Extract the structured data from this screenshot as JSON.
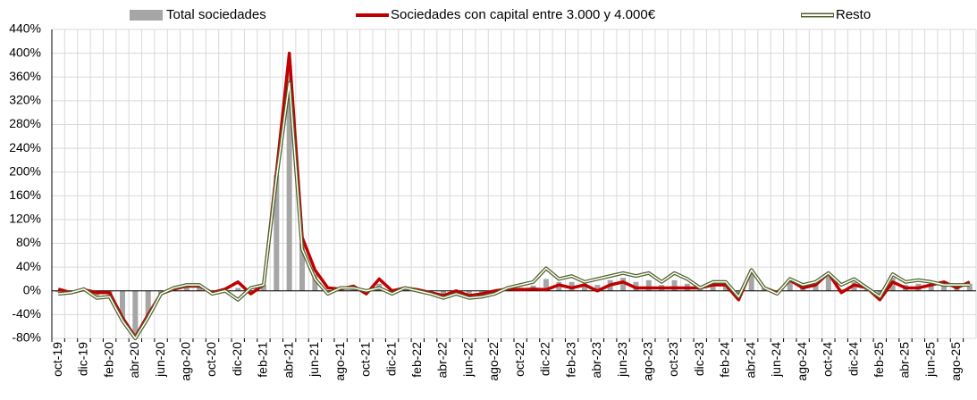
{
  "chart_data": {
    "type": "bar",
    "categories": [
      "oct-19",
      null,
      "dic-19",
      null,
      "feb-20",
      null,
      "abr-20",
      null,
      "jun-20",
      null,
      "ago-20",
      null,
      "oct-20",
      null,
      "dic-20",
      null,
      "feb-21",
      null,
      "abr-21",
      null,
      "jun-21",
      null,
      "ago-21",
      null,
      "oct-21",
      null,
      "dic-21",
      null,
      "feb-22",
      null,
      "abr-22",
      null,
      "jun-22",
      null,
      "ago-22",
      null,
      "oct-22",
      null,
      "dic-22",
      null,
      "feb-23",
      null,
      "abr-23",
      null,
      "jun-23",
      null,
      "ago-23",
      null,
      "oct-23",
      null,
      "dic-23",
      null,
      "feb-24",
      null,
      "abr-24",
      null,
      "jun-24",
      null,
      "ago-24",
      null,
      "oct-24",
      null,
      "dic-24",
      null,
      "feb-25",
      null,
      "abr-25",
      null,
      "jun-25",
      null,
      "ago-25",
      null
    ],
    "series": [
      {
        "name": "Total sociedades",
        "type": "bar",
        "color": "#a6a6a6",
        "values": [
          -2,
          -3,
          2,
          -8,
          -7,
          -48,
          -80,
          -42,
          -5,
          4,
          9,
          9,
          -4,
          2,
          5,
          0,
          10,
          195,
          380,
          80,
          28,
          0,
          4,
          6,
          -3,
          12,
          -3,
          5,
          1,
          -4,
          -10,
          -3,
          -10,
          -8,
          -3,
          4,
          6,
          9,
          20,
          15,
          15,
          12,
          10,
          18,
          22,
          15,
          18,
          10,
          18,
          12,
          5,
          12,
          12,
          -12,
          35,
          5,
          -4,
          19,
          8,
          12,
          30,
          3,
          15,
          5,
          -12,
          22,
          10,
          12,
          12,
          12,
          8,
          12
        ]
      },
      {
        "name": "Sociedades con capital entre 3.000 y 4.000€",
        "type": "line",
        "color": "#c00000",
        "values": [
          3,
          -3,
          2,
          -3,
          -3,
          -45,
          -78,
          -40,
          -5,
          3,
          8,
          8,
          -3,
          3,
          15,
          -5,
          10,
          200,
          400,
          90,
          35,
          5,
          3,
          8,
          -5,
          20,
          0,
          5,
          2,
          -3,
          -8,
          0,
          -8,
          -5,
          0,
          3,
          2,
          3,
          2,
          10,
          5,
          10,
          0,
          10,
          15,
          5,
          5,
          5,
          5,
          5,
          5,
          10,
          10,
          -15,
          35,
          5,
          -3,
          18,
          5,
          10,
          30,
          -3,
          10,
          5,
          -15,
          15,
          5,
          5,
          10,
          15,
          5,
          15
        ]
      },
      {
        "name": "Resto",
        "type": "line",
        "color": "#4f6228",
        "values": [
          -5,
          -3,
          3,
          -12,
          -10,
          -50,
          -80,
          -45,
          -5,
          5,
          10,
          10,
          -5,
          0,
          -15,
          5,
          10,
          190,
          350,
          70,
          20,
          -5,
          5,
          5,
          0,
          5,
          -5,
          5,
          0,
          -5,
          -12,
          -5,
          -12,
          -10,
          -5,
          5,
          10,
          15,
          38,
          20,
          25,
          15,
          20,
          25,
          30,
          25,
          30,
          15,
          30,
          20,
          5,
          15,
          15,
          -10,
          35,
          5,
          -5,
          20,
          10,
          15,
          30,
          10,
          20,
          5,
          -10,
          28,
          15,
          18,
          15,
          10,
          10,
          10
        ]
      }
    ],
    "ylim": [
      -80,
      440
    ],
    "yticks": [
      {
        "value": -80,
        "label": "-80%"
      },
      {
        "value": -40,
        "label": "-40%"
      },
      {
        "value": 0,
        "label": "0%"
      },
      {
        "value": 40,
        "label": "40%"
      },
      {
        "value": 80,
        "label": "80%"
      },
      {
        "value": 120,
        "label": "120%"
      },
      {
        "value": 160,
        "label": "160%"
      },
      {
        "value": 200,
        "label": "200%"
      },
      {
        "value": 240,
        "label": "240%"
      },
      {
        "value": 280,
        "label": "280%"
      },
      {
        "value": 320,
        "label": "320%"
      },
      {
        "value": 360,
        "label": "360%"
      },
      {
        "value": 400,
        "label": "400%"
      },
      {
        "value": 440,
        "label": "440%"
      }
    ],
    "grid": true
  }
}
